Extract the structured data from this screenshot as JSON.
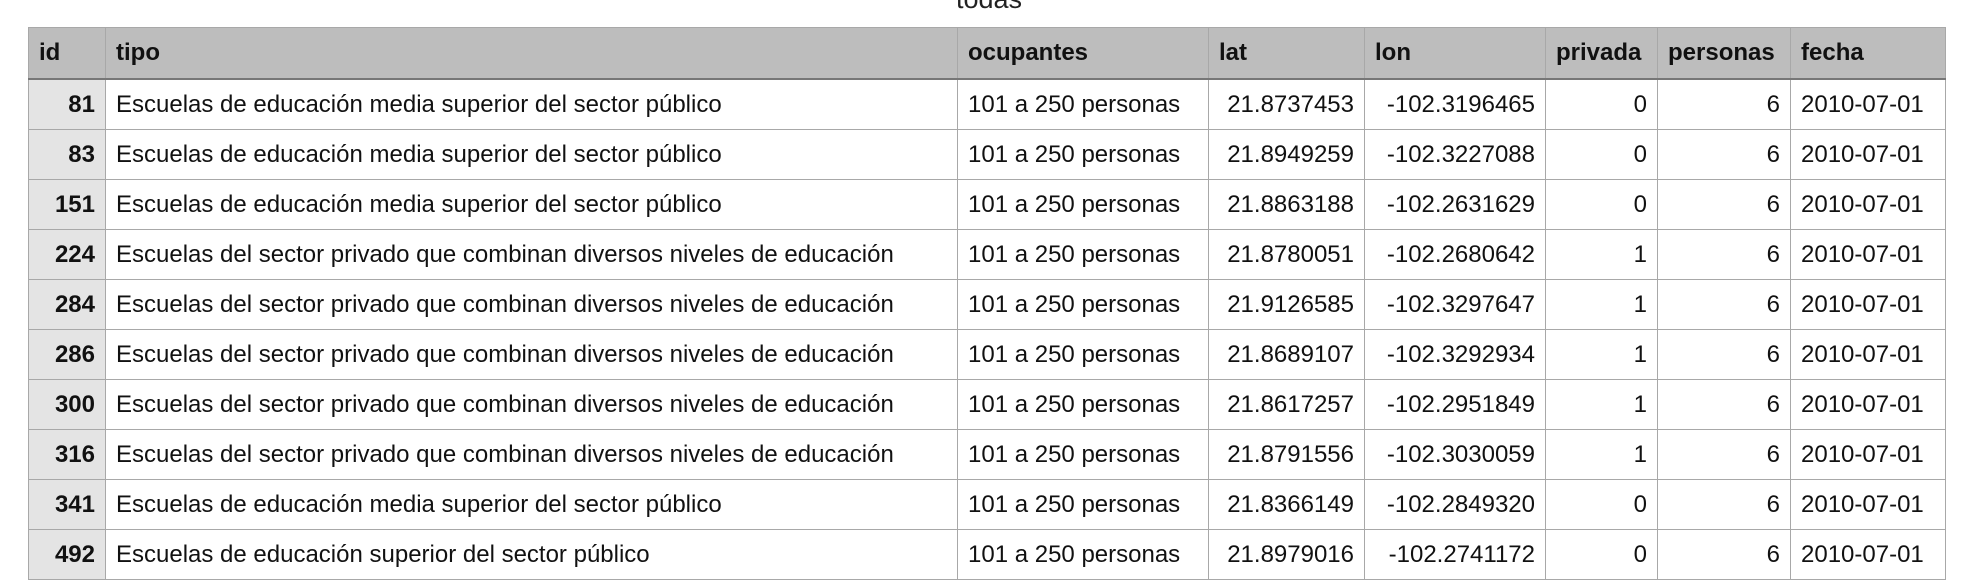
{
  "title": "todas",
  "table": {
    "columns": [
      "id",
      "tipo",
      "ocupantes",
      "lat",
      "lon",
      "privada",
      "personas",
      "fecha"
    ],
    "rows": [
      [
        "81",
        "Escuelas de educación media superior del sector público",
        "101 a 250 personas",
        "21.8737453",
        "-102.3196465",
        "0",
        "6",
        "2010-07-01"
      ],
      [
        "83",
        "Escuelas de educación media superior del sector público",
        "101 a 250 personas",
        "21.8949259",
        "-102.3227088",
        "0",
        "6",
        "2010-07-01"
      ],
      [
        "151",
        "Escuelas de educación media superior del sector público",
        "101 a 250 personas",
        "21.8863188",
        "-102.2631629",
        "0",
        "6",
        "2010-07-01"
      ],
      [
        "224",
        "Escuelas del sector privado que combinan diversos niveles de educación",
        "101 a 250 personas",
        "21.8780051",
        "-102.2680642",
        "1",
        "6",
        "2010-07-01"
      ],
      [
        "284",
        "Escuelas del sector privado que combinan diversos niveles de educación",
        "101 a 250 personas",
        "21.9126585",
        "-102.3297647",
        "1",
        "6",
        "2010-07-01"
      ],
      [
        "286",
        "Escuelas del sector privado que combinan diversos niveles de educación",
        "101 a 250 personas",
        "21.8689107",
        "-102.3292934",
        "1",
        "6",
        "2010-07-01"
      ],
      [
        "300",
        "Escuelas del sector privado que combinan diversos niveles de educación",
        "101 a 250 personas",
        "21.8617257",
        "-102.2951849",
        "1",
        "6",
        "2010-07-01"
      ],
      [
        "316",
        "Escuelas del sector privado que combinan diversos niveles de educación",
        "101 a 250 personas",
        "21.8791556",
        "-102.3030059",
        "1",
        "6",
        "2010-07-01"
      ],
      [
        "341",
        "Escuelas de educación media superior del sector público",
        "101 a 250 personas",
        "21.8366149",
        "-102.2849320",
        "0",
        "6",
        "2010-07-01"
      ],
      [
        "492",
        "Escuelas de educación superior del sector público",
        "101 a 250 personas",
        "21.8979016",
        "-102.2741172",
        "0",
        "6",
        "2010-07-01"
      ]
    ]
  }
}
